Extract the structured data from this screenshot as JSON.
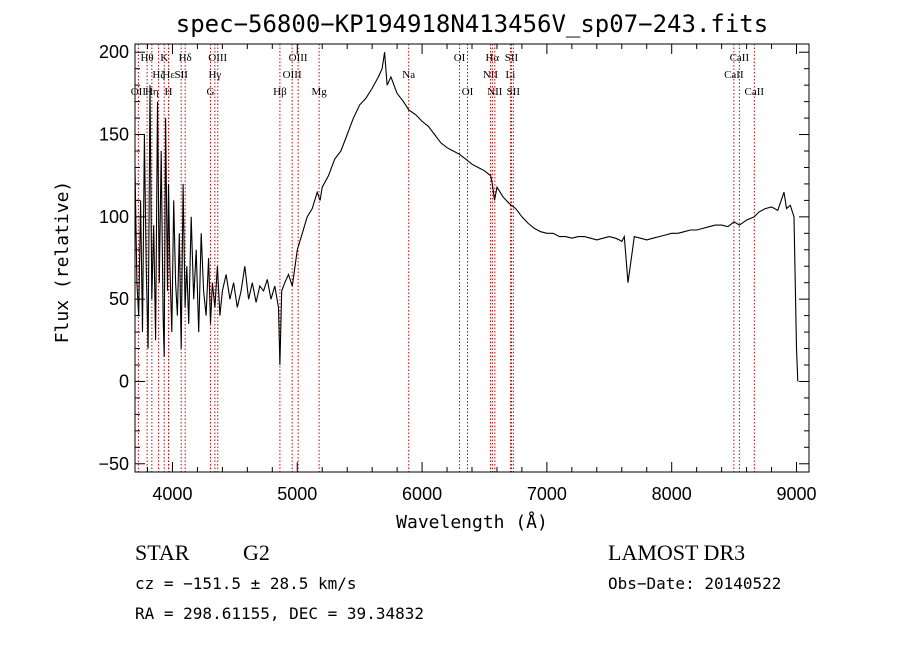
{
  "chart_data": {
    "type": "line",
    "title": "spec−56800−KP194918N413456V_sp07−243.fits",
    "xlabel": "Wavelength (Å)",
    "ylabel": "Flux (relative)",
    "xlim": [
      3700,
      9100
    ],
    "ylim": [
      -55,
      205
    ],
    "xticks": [
      4000,
      5000,
      6000,
      7000,
      8000,
      9000
    ],
    "yticks": [
      -50,
      0,
      50,
      100,
      150,
      200
    ],
    "xtick_labels": [
      "4000",
      "5000",
      "6000",
      "7000",
      "8000",
      "9000"
    ],
    "ytick_labels": [
      "−50",
      "0",
      "50",
      "100",
      "150",
      "200"
    ],
    "series": [
      {
        "name": "flux",
        "x": [
          3700,
          3715,
          3730,
          3745,
          3760,
          3775,
          3790,
          3805,
          3820,
          3835,
          3850,
          3865,
          3880,
          3895,
          3910,
          3925,
          3934,
          3945,
          3960,
          3968,
          3980,
          3995,
          4010,
          4025,
          4040,
          4055,
          4070,
          4085,
          4101,
          4115,
          4130,
          4150,
          4170,
          4190,
          4210,
          4230,
          4250,
          4270,
          4290,
          4305,
          4320,
          4340,
          4360,
          4380,
          4400,
          4430,
          4460,
          4490,
          4520,
          4550,
          4580,
          4610,
          4640,
          4670,
          4700,
          4730,
          4760,
          4790,
          4820,
          4850,
          4861,
          4875,
          4900,
          4930,
          4960,
          5000,
          5040,
          5080,
          5120,
          5160,
          5183,
          5200,
          5250,
          5300,
          5350,
          5400,
          5450,
          5500,
          5550,
          5600,
          5650,
          5680,
          5700,
          5720,
          5750,
          5800,
          5850,
          5893,
          5950,
          6000,
          6050,
          6100,
          6150,
          6200,
          6250,
          6300,
          6350,
          6400,
          6450,
          6500,
          6550,
          6563,
          6580,
          6600,
          6650,
          6700,
          6750,
          6800,
          6850,
          6900,
          6950,
          7000,
          7050,
          7100,
          7150,
          7200,
          7250,
          7300,
          7350,
          7400,
          7450,
          7500,
          7550,
          7580,
          7600,
          7620,
          7650,
          7700,
          7750,
          7800,
          7850,
          7900,
          7950,
          8000,
          8050,
          8100,
          8150,
          8200,
          8250,
          8300,
          8350,
          8400,
          8450,
          8500,
          8542,
          8600,
          8662,
          8700,
          8750,
          8800,
          8850,
          8900,
          8920,
          8950,
          8980,
          9000,
          9010
        ],
        "values": [
          130,
          60,
          40,
          110,
          30,
          150,
          70,
          20,
          180,
          50,
          95,
          25,
          170,
          60,
          140,
          40,
          15,
          160,
          55,
          120,
          70,
          30,
          110,
          60,
          40,
          90,
          20,
          120,
          45,
          70,
          35,
          100,
          50,
          80,
          30,
          90,
          55,
          40,
          75,
          35,
          60,
          45,
          70,
          40,
          55,
          65,
          50,
          60,
          45,
          55,
          70,
          50,
          60,
          48,
          58,
          55,
          62,
          50,
          58,
          45,
          10,
          55,
          60,
          65,
          58,
          80,
          90,
          100,
          105,
          115,
          110,
          118,
          125,
          135,
          140,
          150,
          160,
          168,
          172,
          178,
          185,
          190,
          200,
          180,
          185,
          175,
          170,
          165,
          162,
          158,
          155,
          150,
          145,
          142,
          140,
          138,
          135,
          132,
          130,
          128,
          125,
          120,
          110,
          118,
          112,
          108,
          105,
          100,
          96,
          93,
          91,
          90,
          90,
          88,
          88,
          87,
          88,
          88,
          87,
          86,
          87,
          88,
          87,
          86,
          85,
          88,
          60,
          88,
          87,
          86,
          87,
          88,
          89,
          90,
          90,
          91,
          92,
          92,
          93,
          94,
          95,
          95,
          94,
          97,
          95,
          98,
          100,
          103,
          105,
          106,
          104,
          115,
          105,
          107,
          100,
          20,
          0
        ]
      }
    ],
    "line_markers": [
      {
        "label": "OII",
        "x": 3727,
        "row": 3
      },
      {
        "label": "Hθ",
        "x": 3797,
        "row": 1
      },
      {
        "label": "Hη",
        "x": 3835,
        "row": 3
      },
      {
        "label": "Hζ",
        "x": 3889,
        "row": 2
      },
      {
        "label": "K",
        "x": 3934,
        "row": 1
      },
      {
        "label": "H",
        "x": 3968,
        "row": 3
      },
      {
        "label": "Hε",
        "x": 3970,
        "row": 2
      },
      {
        "label": "SII",
        "x": 4070,
        "row": 2
      },
      {
        "label": "Hδ",
        "x": 4102,
        "row": 1
      },
      {
        "label": "G",
        "x": 4305,
        "row": 3
      },
      {
        "label": "Hγ",
        "x": 4340,
        "row": 2
      },
      {
        "label": "OIII",
        "x": 4363,
        "row": 1
      },
      {
        "label": "Hβ",
        "x": 4861,
        "row": 3
      },
      {
        "label": "OIII",
        "x": 4959,
        "row": 2
      },
      {
        "label": "OIII",
        "x": 5007,
        "row": 1
      },
      {
        "label": "Mg",
        "x": 5175,
        "row": 3
      },
      {
        "label": "Na",
        "x": 5893,
        "row": 2
      },
      {
        "label": "OI",
        "x": 6300,
        "row": 1
      },
      {
        "label": "OI",
        "x": 6364,
        "row": 3
      },
      {
        "label": "NII",
        "x": 6548,
        "row": 2
      },
      {
        "label": "Hα",
        "x": 6563,
        "row": 1
      },
      {
        "label": "NII",
        "x": 6583,
        "row": 3
      },
      {
        "label": "SII",
        "x": 6716,
        "row": 1
      },
      {
        "label": "Li",
        "x": 6708,
        "row": 2
      },
      {
        "label": "SII",
        "x": 6731,
        "row": 3
      },
      {
        "label": "CaII",
        "x": 8498,
        "row": 2
      },
      {
        "label": "CaII",
        "x": 8542,
        "row": 1
      },
      {
        "label": "CaII",
        "x": 8662,
        "row": 3
      }
    ]
  },
  "info": {
    "object_class": "STAR",
    "subclass": "G2",
    "survey": "LAMOST DR3",
    "cz": "cz = −151.5 ± 28.5 km/s",
    "obs_date": "Obs−Date: 20140522",
    "radec": "RA = 298.61155, DEC =  39.34832"
  },
  "colors": {
    "axis": "#000000",
    "spectrum": "#000000",
    "marker": "#cc0000"
  }
}
